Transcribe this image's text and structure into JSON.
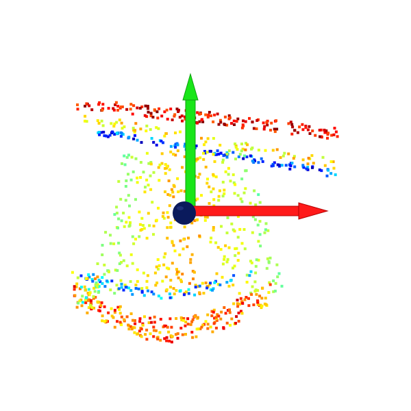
{
  "scene": {
    "background": "#ffffff",
    "colormap": "jet",
    "point_count_per_band_hint": "dense"
  },
  "axes": [
    {
      "name": "x-axis",
      "color": "#ff1a1a",
      "direction": "right"
    },
    {
      "name": "y-axis",
      "color": "#19e619",
      "direction": "up"
    }
  ],
  "origin_marker": {
    "color": "#0a1a5c"
  }
}
